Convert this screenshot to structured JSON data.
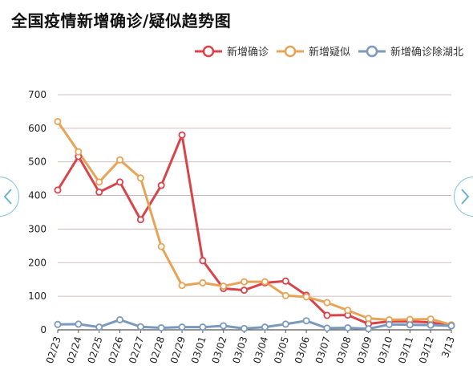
{
  "title": "全国疫情新增确诊/疑似趋势图",
  "chart_data": {
    "type": "line",
    "title": "全国疫情新增确诊/疑似趋势图",
    "x": [
      "02/23",
      "02/24",
      "02/25",
      "02/26",
      "02/27",
      "02/28",
      "02/29",
      "03/01",
      "03/02",
      "03/03",
      "03/04",
      "03/05",
      "03/06",
      "03/07",
      "03/08",
      "03/09",
      "03/10",
      "03/11",
      "03/12",
      "3/13"
    ],
    "yticks": [
      0,
      100,
      200,
      300,
      400,
      500,
      600,
      700
    ],
    "ylim": [
      0,
      700
    ],
    "grid": true,
    "legend": "top-right",
    "series": [
      {
        "name": "新增确诊",
        "color": "#d9434a",
        "values": [
          416,
          516,
          410,
          440,
          328,
          430,
          580,
          206,
          123,
          118,
          140,
          145,
          103,
          43,
          44,
          18,
          25,
          25,
          22,
          12
        ]
      },
      {
        "name": "新增疑似",
        "color": "#e8a456",
        "values": [
          620,
          530,
          440,
          506,
          452,
          248,
          132,
          140,
          130,
          143,
          143,
          102,
          98,
          81,
          58,
          34,
          30,
          31,
          32,
          15
        ]
      },
      {
        "name": "新增确诊除湖北",
        "color": "#7b99bd",
        "values": [
          16,
          17,
          8,
          30,
          9,
          6,
          8,
          8,
          12,
          4,
          8,
          17,
          27,
          5,
          6,
          3,
          16,
          15,
          14,
          12
        ]
      }
    ]
  }
}
